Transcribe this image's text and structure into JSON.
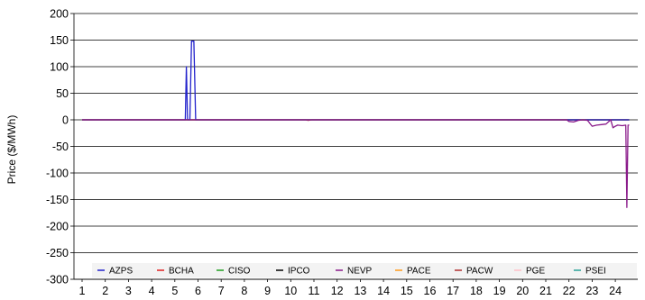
{
  "chart_data": {
    "type": "line",
    "title": "",
    "xlabel": "",
    "ylabel": "Price ($/MWh)",
    "x_ticks": [
      "1",
      "2",
      "3",
      "4",
      "5",
      "6",
      "7",
      "8",
      "9",
      "10",
      "11",
      "12",
      "13",
      "14",
      "15",
      "16",
      "17",
      "18",
      "19",
      "20",
      "21",
      "22",
      "23",
      "24"
    ],
    "y_ticks": [
      200,
      150,
      100,
      50,
      0,
      -50,
      -100,
      -150,
      -200,
      -250,
      -300
    ],
    "ylim": [
      -300,
      200
    ],
    "xlim": [
      1,
      24.6
    ],
    "grid": "horizontal",
    "legend_position": "bottom",
    "series": [
      {
        "name": "AZPS",
        "color": "#2222cc",
        "points": [
          [
            1,
            0
          ],
          [
            5.45,
            0
          ],
          [
            5.5,
            100
          ],
          [
            5.55,
            0
          ],
          [
            5.65,
            0
          ],
          [
            5.72,
            148
          ],
          [
            5.82,
            148
          ],
          [
            5.9,
            0
          ],
          [
            24.6,
            0
          ]
        ]
      },
      {
        "name": "BCHA",
        "color": "#e02020",
        "points": [
          [
            1,
            0
          ],
          [
            24.6,
            0
          ]
        ]
      },
      {
        "name": "CISO",
        "color": "#1f9f1f",
        "points": [
          [
            1,
            0
          ],
          [
            24.6,
            0
          ]
        ]
      },
      {
        "name": "IPCO",
        "color": "#000000",
        "points": [
          [
            1,
            0
          ],
          [
            24.6,
            0
          ]
        ]
      },
      {
        "name": "NEVP",
        "color": "#8a1a8a",
        "points": [
          [
            1,
            0
          ],
          [
            21.9,
            0
          ],
          [
            22.0,
            -3
          ],
          [
            22.2,
            -4
          ],
          [
            22.4,
            -1
          ],
          [
            22.6,
            0
          ],
          [
            22.8,
            -1
          ],
          [
            23.0,
            -12
          ],
          [
            23.2,
            -10
          ],
          [
            23.4,
            -9
          ],
          [
            23.6,
            -8
          ],
          [
            23.8,
            0
          ],
          [
            23.9,
            -15
          ],
          [
            24.0,
            -12
          ],
          [
            24.1,
            -10
          ],
          [
            24.3,
            -11
          ],
          [
            24.45,
            -10
          ],
          [
            24.5,
            -165
          ],
          [
            24.55,
            -10
          ],
          [
            24.6,
            -10
          ]
        ]
      },
      {
        "name": "PACE",
        "color": "#ff9a1a",
        "points": [
          [
            1,
            0
          ],
          [
            24.6,
            0
          ]
        ]
      },
      {
        "name": "PACW",
        "color": "#b03030",
        "points": [
          [
            1,
            0
          ],
          [
            10.65,
            0
          ],
          [
            10.75,
            -1
          ],
          [
            10.9,
            0
          ],
          [
            24.6,
            0
          ]
        ]
      },
      {
        "name": "PGE",
        "color": "#ffc0c8",
        "points": [
          [
            1,
            0
          ],
          [
            24.6,
            0
          ]
        ]
      },
      {
        "name": "PSEI",
        "color": "#2aa198",
        "points": [
          [
            1,
            0
          ],
          [
            24.6,
            0
          ]
        ]
      }
    ]
  }
}
